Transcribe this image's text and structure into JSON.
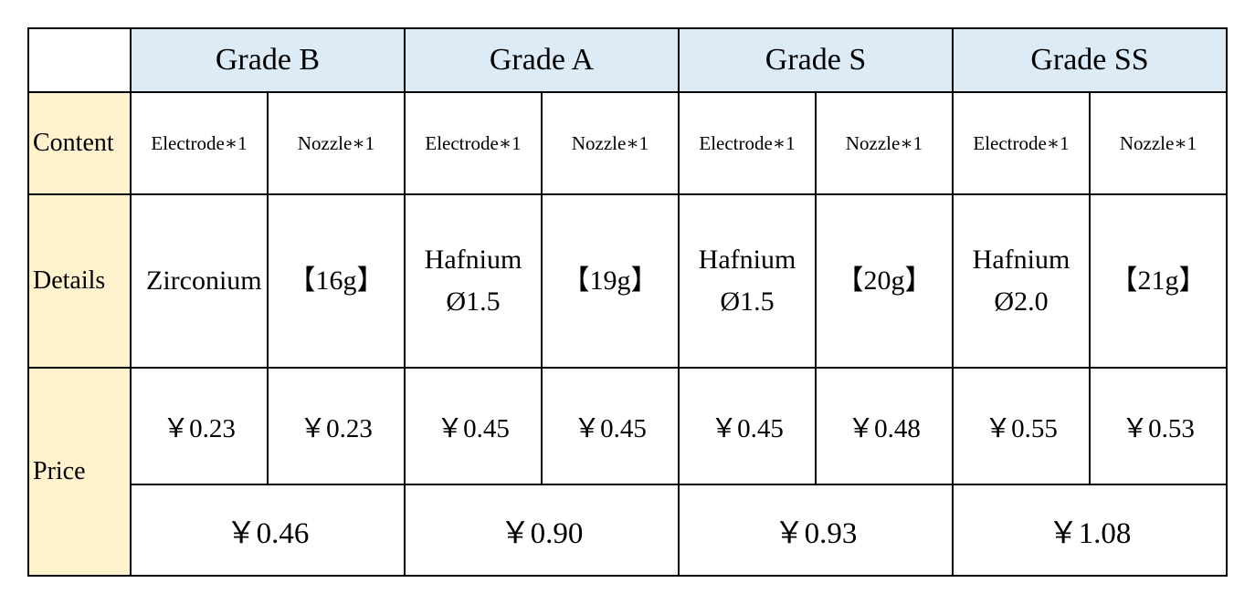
{
  "table": {
    "header": [
      "Grade B",
      "Grade A",
      "Grade S",
      "Grade SS"
    ],
    "rows": [
      {
        "label": "Content",
        "cells": [
          "Electrode∗1",
          "Nozzle∗1",
          "Electrode∗1",
          "Nozzle∗1",
          "Electrode∗1",
          "Nozzle∗1",
          "Electrode∗1",
          "Nozzle∗1"
        ]
      },
      {
        "label": "Details",
        "cells": [
          "Zirconium",
          "【16g】",
          "Hafnium Ø1.5",
          "【19g】",
          "Hafnium Ø1.5",
          "【20g】",
          "Hafnium Ø2.0",
          "【21g】"
        ]
      },
      {
        "label": "Price",
        "cells": [
          "￥0.23",
          "￥0.23",
          "￥0.45",
          "￥0.45",
          "￥0.45",
          "￥0.48",
          "￥0.55",
          "￥0.53"
        ],
        "totals": [
          "￥0.46",
          "￥0.90",
          "￥0.93",
          "￥1.08"
        ]
      }
    ]
  }
}
